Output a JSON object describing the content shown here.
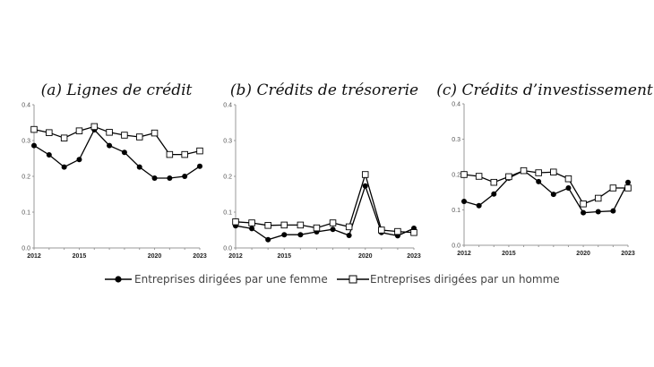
{
  "chart_data": [
    {
      "type": "line",
      "title": "(a) Lignes de crédit",
      "x": [
        2012,
        2013,
        2014,
        2015,
        2016,
        2017,
        2018,
        2019,
        2020,
        2021,
        2022,
        2023
      ],
      "xticks": [
        "2012",
        "2015",
        "2020",
        "2023"
      ],
      "yticks": [
        "0.0",
        "0.1",
        "0.2",
        "0.3",
        "0.4"
      ],
      "ylim": [
        0,
        0.4
      ],
      "grid": false,
      "series": [
        {
          "name": "Entreprises dirigées par une femme",
          "marker": "filled-circle",
          "values": [
            0.286,
            0.26,
            0.226,
            0.247,
            0.33,
            0.286,
            0.267,
            0.226,
            0.195,
            0.195,
            0.2,
            0.228
          ]
        },
        {
          "name": "Entreprises dirigées par un homme",
          "marker": "open-square",
          "values": [
            0.331,
            0.322,
            0.307,
            0.327,
            0.339,
            0.323,
            0.315,
            0.31,
            0.321,
            0.261,
            0.261,
            0.271
          ]
        }
      ]
    },
    {
      "type": "line",
      "title": "(b) Crédits de trésorerie",
      "x": [
        2012,
        2013,
        2014,
        2015,
        2016,
        2017,
        2018,
        2019,
        2020,
        2021,
        2022,
        2023
      ],
      "xticks": [
        "2012",
        "2015",
        "2020",
        "2023"
      ],
      "yticks": [
        "0.0",
        "0.1",
        "0.2",
        "0.3",
        "0.4"
      ],
      "ylim": [
        0,
        0.4
      ],
      "grid": false,
      "series": [
        {
          "name": "Entreprises dirigées par une femme",
          "marker": "filled-circle",
          "values": [
            0.062,
            0.054,
            0.023,
            0.037,
            0.037,
            0.045,
            0.052,
            0.035,
            0.173,
            0.043,
            0.034,
            0.055
          ]
        },
        {
          "name": "Entreprises dirigées par un homme",
          "marker": "open-square",
          "values": [
            0.073,
            0.07,
            0.063,
            0.064,
            0.064,
            0.056,
            0.07,
            0.059,
            0.205,
            0.05,
            0.046,
            0.043
          ]
        }
      ]
    },
    {
      "type": "line",
      "title": "(c) Crédits d’investissement",
      "x": [
        2012,
        2013,
        2014,
        2015,
        2016,
        2017,
        2018,
        2019,
        2020,
        2021,
        2022,
        2023
      ],
      "xticks": [
        "2012",
        "2015",
        "2020",
        "2023"
      ],
      "yticks": [
        "0.0",
        "0.1",
        "0.2",
        "0.3",
        "0.4"
      ],
      "ylim": [
        0,
        0.4
      ],
      "grid": false,
      "series": [
        {
          "name": "Entreprises dirigées par une femme",
          "marker": "filled-circle",
          "values": [
            0.124,
            0.112,
            0.145,
            0.19,
            0.211,
            0.18,
            0.144,
            0.162,
            0.092,
            0.095,
            0.097,
            0.178
          ]
        },
        {
          "name": "Entreprises dirigées par un homme",
          "marker": "open-square",
          "values": [
            0.2,
            0.195,
            0.178,
            0.194,
            0.211,
            0.205,
            0.207,
            0.188,
            0.117,
            0.133,
            0.162,
            0.162
          ]
        }
      ]
    }
  ],
  "legend": {
    "placement": "bottom",
    "items": [
      "Entreprises dirigées par une femme",
      "Entreprises dirigées par un homme"
    ]
  },
  "colors": {
    "line": "#000000",
    "axis": "#999999",
    "square_fill": "#ffffff"
  }
}
